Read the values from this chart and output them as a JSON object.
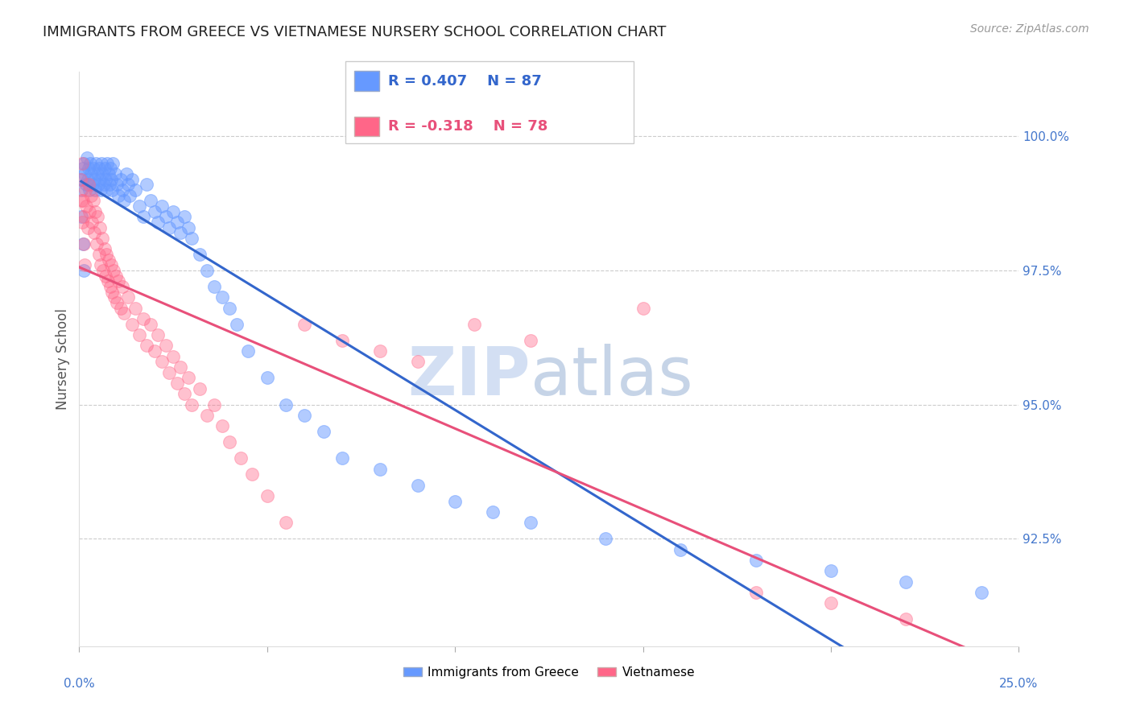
{
  "title": "IMMIGRANTS FROM GREECE VS VIETNAMESE NURSERY SCHOOL CORRELATION CHART",
  "source": "Source: ZipAtlas.com",
  "ylabel": "Nursery School",
  "xmin": 0.0,
  "xmax": 25.0,
  "ymin": 90.5,
  "ymax": 101.2,
  "blue_color": "#6699ff",
  "pink_color": "#ff6688",
  "blue_line_color": "#3366cc",
  "pink_line_color": "#e8507a",
  "watermark_zip_color": "#c8d8f0",
  "watermark_atlas_color": "#a0b8d8",
  "ytick_vals": [
    92.5,
    95.0,
    97.5,
    100.0
  ],
  "ytick_labels": [
    "92.5%",
    "95.0%",
    "97.5%",
    "100.0%"
  ],
  "blue_scatter_x": [
    0.05,
    0.08,
    0.1,
    0.12,
    0.15,
    0.18,
    0.2,
    0.22,
    0.25,
    0.28,
    0.3,
    0.32,
    0.35,
    0.38,
    0.4,
    0.42,
    0.45,
    0.48,
    0.5,
    0.52,
    0.55,
    0.58,
    0.6,
    0.62,
    0.65,
    0.68,
    0.7,
    0.72,
    0.75,
    0.78,
    0.8,
    0.82,
    0.85,
    0.88,
    0.9,
    0.95,
    1.0,
    1.05,
    1.1,
    1.15,
    1.2,
    1.25,
    1.3,
    1.35,
    1.4,
    1.5,
    1.6,
    1.7,
    1.8,
    1.9,
    2.0,
    2.1,
    2.2,
    2.3,
    2.4,
    2.5,
    2.6,
    2.7,
    2.8,
    2.9,
    3.0,
    3.2,
    3.4,
    3.6,
    3.8,
    4.0,
    4.2,
    4.5,
    5.0,
    5.5,
    6.0,
    6.5,
    7.0,
    8.0,
    9.0,
    10.0,
    11.0,
    12.0,
    14.0,
    16.0,
    18.0,
    20.0,
    22.0,
    24.0,
    0.06,
    0.09,
    0.13
  ],
  "blue_scatter_y": [
    99.0,
    99.2,
    99.4,
    99.5,
    99.3,
    99.1,
    99.6,
    99.2,
    99.4,
    99.0,
    99.5,
    99.3,
    99.1,
    99.4,
    99.2,
    99.0,
    99.5,
    99.3,
    99.1,
    99.4,
    99.2,
    99.0,
    99.5,
    99.3,
    99.1,
    99.4,
    99.2,
    99.0,
    99.5,
    99.3,
    99.1,
    99.4,
    99.2,
    99.0,
    99.5,
    99.3,
    99.1,
    98.9,
    99.2,
    99.0,
    98.8,
    99.3,
    99.1,
    98.9,
    99.2,
    99.0,
    98.7,
    98.5,
    99.1,
    98.8,
    98.6,
    98.4,
    98.7,
    98.5,
    98.3,
    98.6,
    98.4,
    98.2,
    98.5,
    98.3,
    98.1,
    97.8,
    97.5,
    97.2,
    97.0,
    96.8,
    96.5,
    96.0,
    95.5,
    95.0,
    94.8,
    94.5,
    94.0,
    93.8,
    93.5,
    93.2,
    93.0,
    92.8,
    92.5,
    92.3,
    92.1,
    91.9,
    91.7,
    91.5,
    98.5,
    98.0,
    97.5
  ],
  "pink_scatter_x": [
    0.04,
    0.07,
    0.1,
    0.13,
    0.16,
    0.19,
    0.22,
    0.25,
    0.28,
    0.31,
    0.34,
    0.37,
    0.4,
    0.43,
    0.46,
    0.49,
    0.52,
    0.55,
    0.58,
    0.61,
    0.64,
    0.67,
    0.7,
    0.73,
    0.76,
    0.79,
    0.82,
    0.85,
    0.88,
    0.91,
    0.94,
    0.97,
    1.0,
    1.05,
    1.1,
    1.15,
    1.2,
    1.3,
    1.4,
    1.5,
    1.6,
    1.7,
    1.8,
    1.9,
    2.0,
    2.1,
    2.2,
    2.3,
    2.4,
    2.5,
    2.6,
    2.7,
    2.8,
    2.9,
    3.0,
    3.2,
    3.4,
    3.6,
    3.8,
    4.0,
    4.3,
    4.6,
    5.0,
    5.5,
    6.0,
    7.0,
    8.0,
    9.0,
    10.5,
    12.0,
    15.0,
    18.0,
    20.0,
    22.0,
    0.05,
    0.08,
    0.11,
    0.14
  ],
  "pink_scatter_y": [
    99.2,
    99.5,
    98.8,
    98.5,
    99.0,
    98.7,
    98.3,
    99.1,
    98.6,
    98.9,
    98.4,
    98.8,
    98.2,
    98.6,
    98.0,
    98.5,
    97.8,
    98.3,
    97.6,
    98.1,
    97.5,
    97.9,
    97.4,
    97.8,
    97.3,
    97.7,
    97.2,
    97.6,
    97.1,
    97.5,
    97.0,
    97.4,
    96.9,
    97.3,
    96.8,
    97.2,
    96.7,
    97.0,
    96.5,
    96.8,
    96.3,
    96.6,
    96.1,
    96.5,
    96.0,
    96.3,
    95.8,
    96.1,
    95.6,
    95.9,
    95.4,
    95.7,
    95.2,
    95.5,
    95.0,
    95.3,
    94.8,
    95.0,
    94.6,
    94.3,
    94.0,
    93.7,
    93.3,
    92.8,
    96.5,
    96.2,
    96.0,
    95.8,
    96.5,
    96.2,
    96.8,
    91.5,
    91.3,
    91.0,
    98.8,
    98.4,
    98.0,
    97.6
  ]
}
